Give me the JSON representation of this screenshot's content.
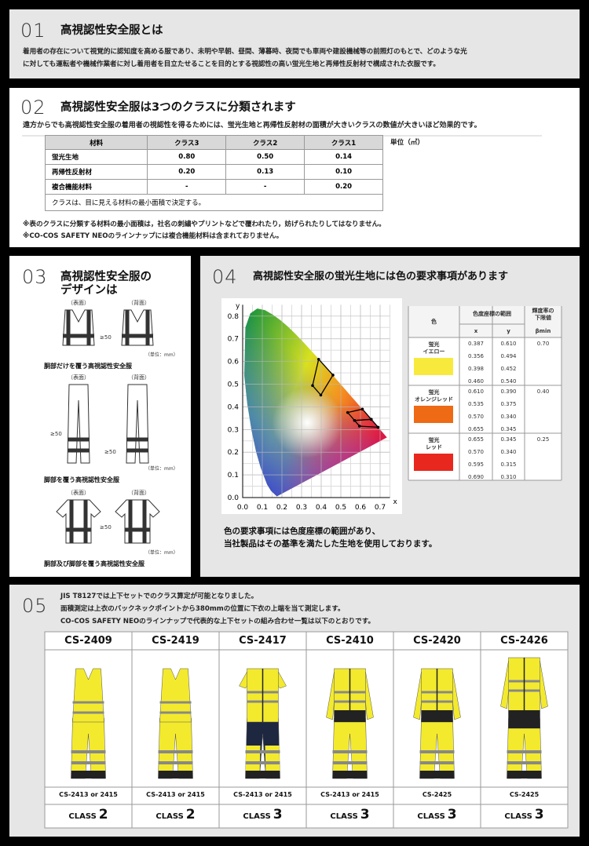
{
  "s01": {
    "number": "01",
    "title": "高視認性安全服とは",
    "body": [
      "着用者の存在について視覚的に認知度を高める服であり、未明や早朝、昼間、薄暮時、夜間でも車両や建設機械等の前照灯のもとで、どのような光",
      "に対しても運転者や機械作業者に対し着用者を目立たせることを目的とする視認性の高い蛍光生地と再帰性反射材で構成された衣服です。"
    ]
  },
  "s02": {
    "number": "02",
    "title": "高視認性安全服は3つのクラスに分類されます",
    "body": "遠方からでも高視認性安全服の着用者の視認性を得るためには、蛍光生地と再帰性反射材の面積が大きいクラスの数値が大きいほど効果的です。",
    "table": {
      "header": [
        "材料",
        "クラス3",
        "クラス2",
        "クラス1"
      ],
      "rows": [
        [
          "蛍光生地",
          "0.80",
          "0.50",
          "0.14"
        ],
        [
          "再帰性反射材",
          "0.20",
          "0.13",
          "0.10"
        ],
        [
          "複合機能材料",
          "-",
          "-",
          "0.20"
        ]
      ],
      "footnote": "クラスは、目に見える材料の最小面積で決定する。"
    },
    "unit": "単位（㎡）",
    "notes": [
      "※表のクラスに分類する材料の最小面積は，社名の刺繍やプリントなどで覆われたり，妨げられたりしてはなりません。",
      "※CO-COS SAFETY NEOのラインナップには複合機能材料は含まれておりません。"
    ]
  },
  "s03": {
    "number": "03",
    "title": [
      "高視認性安全服の",
      "デザインは"
    ],
    "figures": [
      {
        "front": "（表面）",
        "back": "（背面）",
        "dims": [
          "≥50"
        ],
        "unit": "（単位：mm）",
        "caption": "胴部だけを覆う高視認性安全服"
      },
      {
        "front": "（表面）",
        "back": "（背面）",
        "dims": [
          "≥50",
          "≥50"
        ],
        "unit": "（単位：mm）",
        "caption": "脚部を覆う高視認性安全服"
      },
      {
        "front": "（表面）",
        "back": "（背面）",
        "dims": [
          "≥50"
        ],
        "unit": "（単位：mm）",
        "caption": "胴部及び脚部を覆う高視認性安全服"
      }
    ]
  },
  "s04": {
    "number": "04",
    "title": "高視認性安全服の蛍光生地には色の要求事項があります",
    "chart": {
      "xlabel": "x",
      "ylabel": "y",
      "xlim": [
        0,
        0.75
      ],
      "ylim": [
        0,
        0.85
      ],
      "xticks": [
        {
          "value": 0,
          "label": "0.0"
        },
        0.1,
        0.2,
        0.3,
        0.4,
        0.5,
        0.6,
        0.7
      ],
      "yticks": [
        {
          "value": 0,
          "label": "0.0"
        },
        0.1,
        0.2,
        0.3,
        0.4,
        0.5,
        0.6,
        0.7,
        0.8
      ],
      "grid": true
    },
    "table": {
      "header": {
        "color": "色",
        "coords": "色度座標の範囲",
        "x": "x",
        "y": "y",
        "lum": [
          "輝度率の",
          "下限値"
        ],
        "beta": "βmin"
      },
      "rows": [
        {
          "name": [
            "蛍光",
            "イエロー"
          ],
          "color": "#f7ea3c",
          "points": [
            [
              "0.387",
              "0.610"
            ],
            [
              "0.356",
              "0.494"
            ],
            [
              "0.398",
              "0.452"
            ],
            [
              "0.460",
              "0.540"
            ]
          ],
          "beta": "0.70"
        },
        {
          "name": [
            "蛍光",
            "オレンジレッド"
          ],
          "color": "#ee6a14",
          "points": [
            [
              "0.610",
              "0.390"
            ],
            [
              "0.535",
              "0.375"
            ],
            [
              "0.570",
              "0.340"
            ],
            [
              "0.655",
              "0.345"
            ]
          ],
          "beta": "0.40"
        },
        {
          "name": [
            "蛍光",
            "レッド"
          ],
          "color": "#e8281e",
          "points": [
            [
              "0.655",
              "0.345"
            ],
            [
              "0.570",
              "0.340"
            ],
            [
              "0.595",
              "0.315"
            ],
            [
              "0.690",
              "0.310"
            ]
          ],
          "beta": "0.25"
        }
      ]
    },
    "caption": [
      "色の要求事項には色度座標の範囲があり、",
      "当社製品はその基準を満たした生地を使用しております。"
    ]
  },
  "s05": {
    "number": "05",
    "body": [
      "JIS T8127では上下セットでのクラス算定が可能となりました。",
      "面積測定は上衣のバックネックポイントから380mmの位置に下衣の上端を当て測定します。",
      "CO-COS SAFETY NEOのラインナップで代表的な上下セットの組み合わせ一覧は以下のとおりです。"
    ],
    "products": [
      {
        "code": "CS-2409",
        "set": "CS-2413 or 2415",
        "class_label": "CLASS",
        "class": 2
      },
      {
        "code": "CS-2419",
        "set": "CS-2413 or 2415",
        "class_label": "CLASS",
        "class": 2
      },
      {
        "code": "CS-2417",
        "set": "CS-2413 or 2415",
        "class_label": "CLASS",
        "class": 3
      },
      {
        "code": "CS-2410",
        "set": "CS-2413 or 2415",
        "class_label": "CLASS",
        "class": 3
      },
      {
        "code": "CS-2420",
        "set": "CS-2425",
        "class_label": "CLASS",
        "class": 3
      },
      {
        "code": "CS-2426",
        "set": "CS-2425",
        "class_label": "CLASS",
        "class": 3
      }
    ]
  }
}
